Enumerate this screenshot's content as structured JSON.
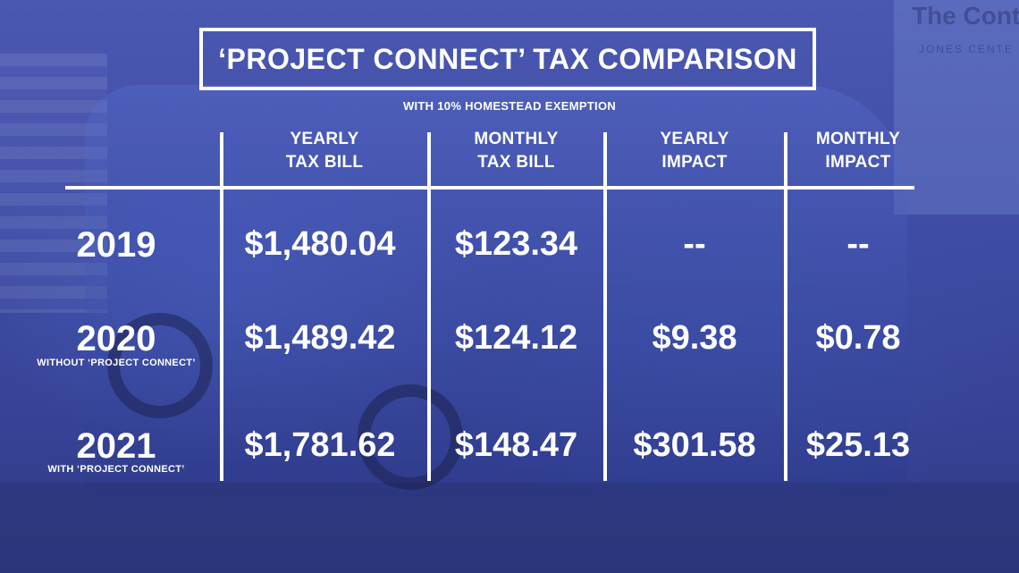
{
  "title": "‘PROJECT CONNECT’ TAX COMPARISON",
  "subtitle": "WITH 10% HOMESTEAD EXEMPTION",
  "columns": [
    {
      "line1": "YEARLY",
      "line2": "TAX BILL"
    },
    {
      "line1": "MONTHLY",
      "line2": "TAX BILL"
    },
    {
      "line1": "YEARLY",
      "line2": "IMPACT"
    },
    {
      "line1": "MONTHLY",
      "line2": "IMPACT"
    }
  ],
  "rows": [
    {
      "year": "2019",
      "note": "",
      "yearly_tax_bill": "$1,480.04",
      "monthly_tax_bill": "$123.34",
      "yearly_impact": "--",
      "monthly_impact": "--"
    },
    {
      "year": "2020",
      "note": "WITHOUT ‘PROJECT CONNECT’",
      "yearly_tax_bill": "$1,489.42",
      "monthly_tax_bill": "$124.12",
      "yearly_impact": "$9.38",
      "monthly_impact": "$0.78"
    },
    {
      "year": "2021",
      "note": "WITH ‘PROJECT CONNECT’",
      "yearly_tax_bill": "$1,781.62",
      "monthly_tax_bill": "$148.47",
      "yearly_impact": "$301.58",
      "monthly_impact": "$25.13"
    }
  ],
  "background_sign": {
    "line1": "The Conten",
    "line2": "JONES CENTE"
  },
  "colors": {
    "overlay": "#3f4ca6",
    "text": "#ffffff"
  }
}
